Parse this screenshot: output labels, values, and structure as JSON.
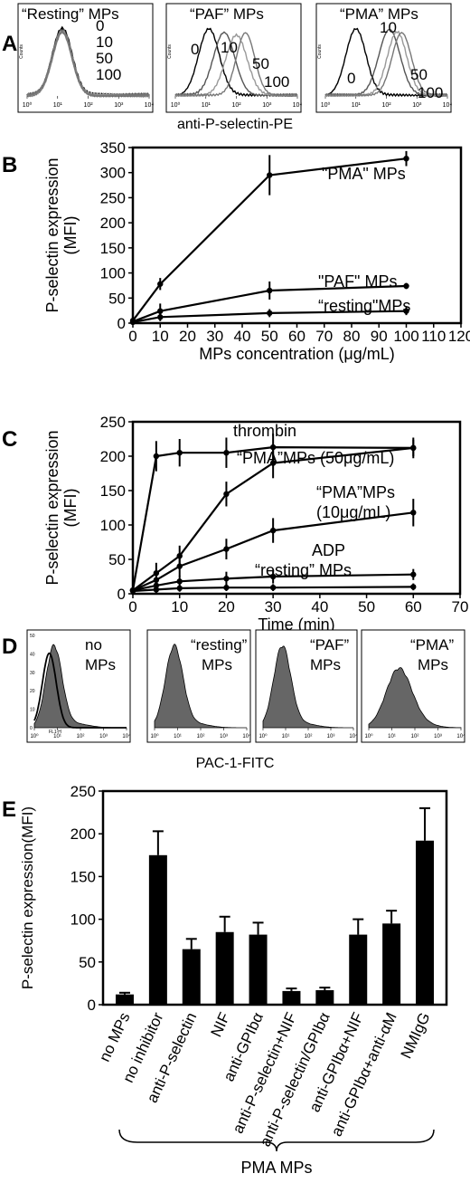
{
  "chart_data": [
    {
      "panel": "A",
      "type": "histogram",
      "xlabel": "anti-P-selectin-PE",
      "ylabel": "Counts",
      "x_ticks": [
        "10⁰",
        "10¹",
        "10²",
        "10³",
        "10⁴"
      ],
      "subpanels": [
        {
          "title": "“Resting” MPs",
          "series_labels": [
            "0",
            "10",
            "50",
            "100"
          ]
        },
        {
          "title": "“PAF” MPs",
          "series_labels": [
            "0",
            "10",
            "50",
            "100"
          ]
        },
        {
          "title": "“PMA” MPs",
          "series_labels": [
            "0",
            "10",
            "50",
            "100"
          ]
        }
      ]
    },
    {
      "panel": "B",
      "type": "line",
      "xlabel": "MPs concentration (μg/mL)",
      "ylabel": "P-selectin expression (MFI)",
      "xlim": [
        0,
        120
      ],
      "ylim": [
        0,
        350
      ],
      "x_ticks": [
        0,
        10,
        20,
        30,
        40,
        50,
        60,
        70,
        80,
        90,
        100,
        110,
        120
      ],
      "y_ticks": [
        0,
        50,
        100,
        150,
        200,
        250,
        300,
        350
      ],
      "x": [
        0,
        10,
        50,
        100
      ],
      "series": [
        {
          "name": "\"PMA\" MPs",
          "values": [
            5,
            78,
            295,
            328
          ],
          "errors": [
            3,
            12,
            40,
            15
          ]
        },
        {
          "name": "\"PAF\" MPs",
          "values": [
            3,
            24,
            65,
            74
          ],
          "errors": [
            2,
            15,
            18,
            6
          ]
        },
        {
          "name": "“resting\"MPs",
          "values": [
            2,
            12,
            20,
            24
          ],
          "errors": [
            2,
            8,
            8,
            8
          ]
        }
      ]
    },
    {
      "panel": "C",
      "type": "line",
      "xlabel": "Time (min)",
      "ylabel": "P-selectin expression (MFI)",
      "xlim": [
        0,
        70
      ],
      "ylim": [
        0,
        250
      ],
      "x_ticks": [
        0,
        10,
        20,
        30,
        40,
        50,
        60,
        70
      ],
      "y_ticks": [
        0,
        50,
        100,
        150,
        200,
        250
      ],
      "x": [
        0,
        5,
        10,
        20,
        30,
        60
      ],
      "series": [
        {
          "name": "thrombin",
          "values": [
            5,
            200,
            205,
            205,
            213,
            212
          ],
          "errors": [
            2,
            22,
            20,
            22,
            20,
            12
          ]
        },
        {
          "name": "“PMA”MPs (50μg/mL)",
          "values": [
            5,
            30,
            55,
            145,
            190,
            212
          ],
          "errors": [
            2,
            15,
            15,
            18,
            22,
            15
          ]
        },
        {
          "name": "“PMA”MPs (10μg/mL)",
          "values": [
            5,
            20,
            40,
            65,
            92,
            118
          ],
          "errors": [
            2,
            15,
            15,
            15,
            18,
            20
          ]
        },
        {
          "name": "ADP",
          "values": [
            5,
            12,
            18,
            22,
            25,
            28
          ],
          "errors": [
            2,
            8,
            8,
            10,
            10,
            8
          ]
        },
        {
          "name": "“resting” MPs",
          "values": [
            4,
            6,
            8,
            9,
            9,
            10
          ],
          "errors": [
            2,
            5,
            5,
            5,
            5,
            5
          ]
        }
      ]
    },
    {
      "panel": "D",
      "type": "histogram",
      "xlabel": "PAC-1-FITC",
      "ylabel": "Counts",
      "x_axis_label": "FL1-H",
      "x_ticks": [
        "10⁰",
        "10¹",
        "10²",
        "10³",
        "10⁴"
      ],
      "y_ticks": [
        "0",
        "10",
        "20",
        "30",
        "40",
        "50"
      ],
      "subpanels": [
        {
          "title_lines": [
            "no",
            "MPs"
          ]
        },
        {
          "title_lines": [
            "“resting”",
            "MPs"
          ]
        },
        {
          "title_lines": [
            "“PAF”",
            "MPs"
          ]
        },
        {
          "title_lines": [
            "“PMA”",
            "MPs"
          ]
        }
      ]
    },
    {
      "panel": "E",
      "type": "bar",
      "ylabel": "P-selectin expression(MFI)",
      "ylim": [
        0,
        250
      ],
      "y_ticks": [
        0,
        50,
        100,
        150,
        200,
        250
      ],
      "categories": [
        "no MPs",
        "no inhibitor",
        "anti-P-selectin",
        "NIF",
        "anti-GPIbα",
        "anti-P-selectin+NIF",
        "anti-P-selectin/GPIbα",
        "anti-GPIbα+NIF",
        "anti-GPIbα+anti-αM",
        "NMIgG"
      ],
      "values": [
        12,
        175,
        65,
        85,
        82,
        16,
        17,
        82,
        95,
        192
      ],
      "errors": [
        2,
        28,
        12,
        18,
        14,
        3,
        3,
        18,
        15,
        38
      ],
      "group_label": "PMA MPs"
    }
  ]
}
